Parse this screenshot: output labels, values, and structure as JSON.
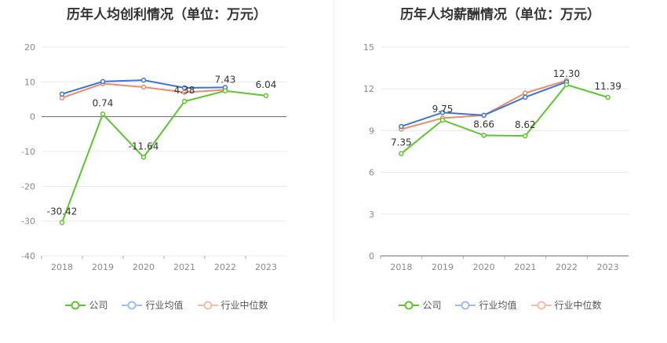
{
  "legend": [
    "公司",
    "行业均值",
    "行业中位数"
  ],
  "colors": {
    "company": "#5cc72b",
    "industry_avg": "#3b74d8",
    "industry_median": "#ee8a66"
  },
  "chart_data": [
    {
      "type": "line",
      "title": "历年人均创利情况（单位：万元）",
      "categories": [
        "2018",
        "2019",
        "2020",
        "2021",
        "2022",
        "2023"
      ],
      "ylim": [
        -40,
        20
      ],
      "yticks": [
        20,
        10,
        0,
        -10,
        -20,
        -30,
        -40
      ],
      "grid": true,
      "series": [
        {
          "name": "公司",
          "values": [
            -30.42,
            0.74,
            -11.64,
            4.38,
            7.43,
            6.04
          ],
          "labels": [
            "-30.42",
            "0.74",
            "-11.64",
            "4.38",
            "7.43",
            "6.04"
          ]
        },
        {
          "name": "行业均值",
          "values": [
            6.5,
            10.1,
            10.5,
            8.3,
            8.4,
            null
          ]
        },
        {
          "name": "行业中位数",
          "values": [
            5.4,
            9.5,
            8.5,
            7.0,
            7.7,
            null
          ]
        }
      ]
    },
    {
      "type": "line",
      "title": "历年人均薪酬情况（单位：万元）",
      "categories": [
        "2018",
        "2019",
        "2020",
        "2021",
        "2022",
        "2023"
      ],
      "ylim": [
        0,
        15
      ],
      "yticks": [
        15,
        12,
        9,
        6,
        3,
        0
      ],
      "grid": true,
      "series": [
        {
          "name": "公司",
          "values": [
            7.35,
            9.75,
            8.66,
            8.62,
            12.3,
            11.39
          ],
          "labels": [
            "7.35",
            "9.75",
            "8.66",
            "8.62",
            "12.30",
            "11.39"
          ]
        },
        {
          "name": "行业均值",
          "values": [
            9.3,
            10.3,
            10.1,
            11.4,
            12.5,
            null
          ]
        },
        {
          "name": "行业中位数",
          "values": [
            9.1,
            9.9,
            10.1,
            11.7,
            12.6,
            null
          ]
        }
      ]
    }
  ]
}
